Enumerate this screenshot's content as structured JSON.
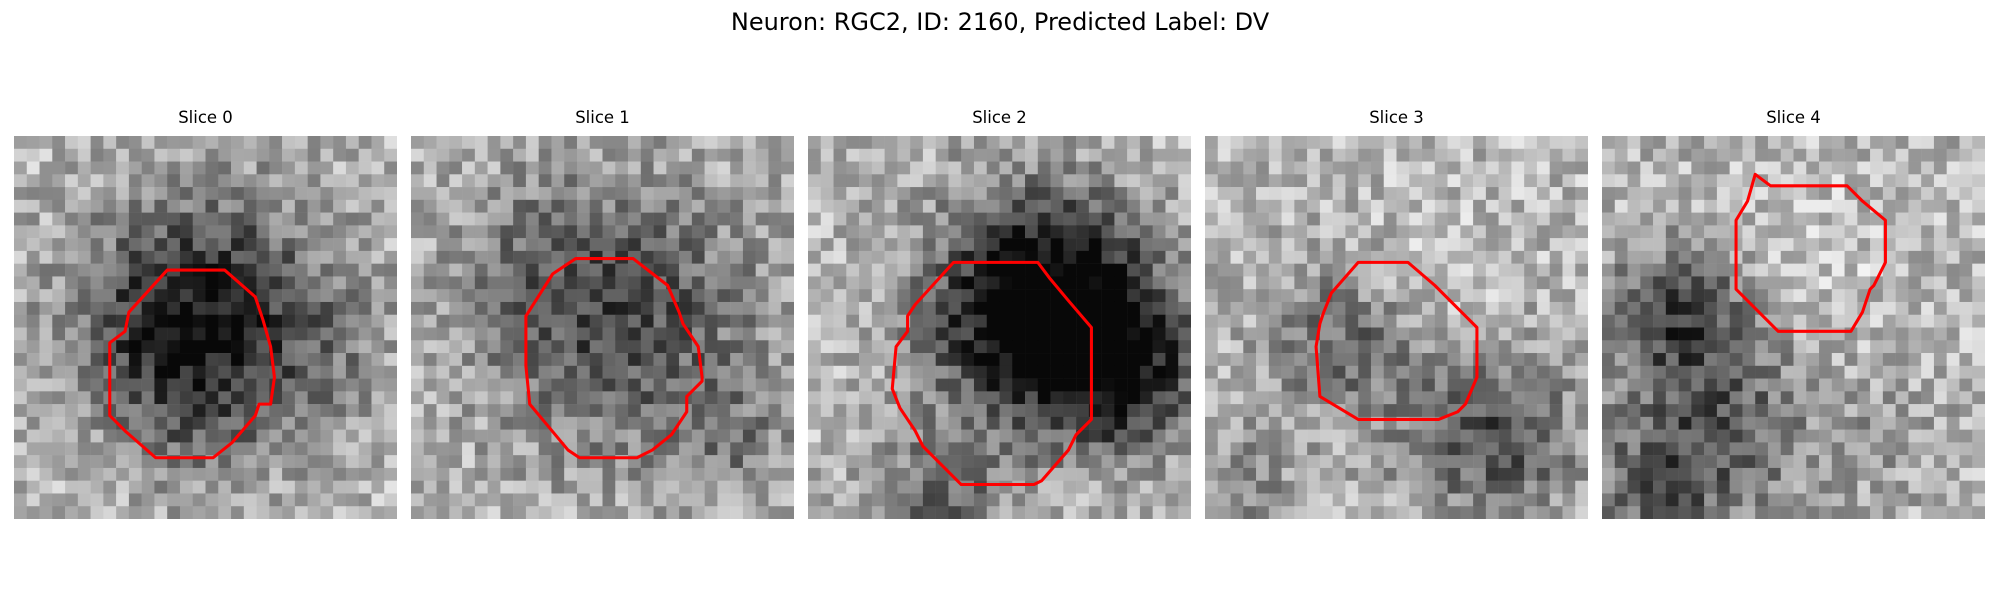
{
  "figure": {
    "title": "Neuron: RGC2, ID: 2160, Predicted Label: DV",
    "outline_color": "#ff0000"
  },
  "panels": [
    {
      "title": "Slice 0",
      "seed": 11,
      "blobs": [
        [
          0.52,
          0.46,
          0.22,
          -1.6
        ],
        [
          0.35,
          0.55,
          0.18,
          -0.5
        ],
        [
          0.5,
          0.75,
          0.12,
          -0.35
        ],
        [
          0.82,
          0.6,
          0.12,
          -0.3
        ]
      ],
      "contour": [
        [
          0.4,
          0.35
        ],
        [
          0.55,
          0.35
        ],
        [
          0.63,
          0.42
        ],
        [
          0.65,
          0.48
        ],
        [
          0.67,
          0.55
        ],
        [
          0.68,
          0.63
        ],
        [
          0.67,
          0.7
        ],
        [
          0.64,
          0.7
        ],
        [
          0.63,
          0.73
        ],
        [
          0.57,
          0.8
        ],
        [
          0.52,
          0.84
        ],
        [
          0.37,
          0.84
        ],
        [
          0.29,
          0.77
        ],
        [
          0.25,
          0.73
        ],
        [
          0.25,
          0.54
        ],
        [
          0.29,
          0.51
        ],
        [
          0.3,
          0.46
        ]
      ]
    },
    {
      "title": "Slice 1",
      "seed": 23,
      "blobs": [
        [
          0.55,
          0.48,
          0.25,
          -1.25
        ],
        [
          0.3,
          0.3,
          0.15,
          -0.3
        ],
        [
          0.85,
          0.8,
          0.1,
          -0.5
        ]
      ],
      "contour": [
        [
          0.37,
          0.36
        ],
        [
          0.43,
          0.32
        ],
        [
          0.58,
          0.32
        ],
        [
          0.67,
          0.39
        ],
        [
          0.7,
          0.46
        ],
        [
          0.71,
          0.49
        ],
        [
          0.75,
          0.55
        ],
        [
          0.76,
          0.63
        ],
        [
          0.76,
          0.64
        ],
        [
          0.72,
          0.68
        ],
        [
          0.72,
          0.72
        ],
        [
          0.68,
          0.78
        ],
        [
          0.63,
          0.82
        ],
        [
          0.61,
          0.83
        ],
        [
          0.59,
          0.84
        ],
        [
          0.44,
          0.84
        ],
        [
          0.41,
          0.82
        ],
        [
          0.36,
          0.76
        ],
        [
          0.31,
          0.7
        ],
        [
          0.3,
          0.6
        ],
        [
          0.3,
          0.55
        ],
        [
          0.3,
          0.47
        ]
      ]
    },
    {
      "title": "Slice 2",
      "seed": 37,
      "blobs": [
        [
          0.6,
          0.42,
          0.2,
          -1.9
        ],
        [
          0.73,
          0.55,
          0.18,
          -1.2
        ],
        [
          0.45,
          0.55,
          0.15,
          -0.2
        ],
        [
          0.35,
          0.95,
          0.12,
          -0.9
        ],
        [
          0.85,
          0.65,
          0.12,
          -0.9
        ]
      ],
      "contour": [
        [
          0.38,
          0.33
        ],
        [
          0.47,
          0.33
        ],
        [
          0.6,
          0.33
        ],
        [
          0.63,
          0.37
        ],
        [
          0.68,
          0.43
        ],
        [
          0.74,
          0.5
        ],
        [
          0.74,
          0.74
        ],
        [
          0.7,
          0.78
        ],
        [
          0.68,
          0.82
        ],
        [
          0.61,
          0.9
        ],
        [
          0.59,
          0.91
        ],
        [
          0.4,
          0.91
        ],
        [
          0.3,
          0.81
        ],
        [
          0.28,
          0.77
        ],
        [
          0.24,
          0.71
        ],
        [
          0.22,
          0.66
        ],
        [
          0.23,
          0.55
        ],
        [
          0.26,
          0.51
        ],
        [
          0.26,
          0.47
        ],
        [
          0.28,
          0.44
        ],
        [
          0.28,
          0.44
        ]
      ]
    },
    {
      "title": "Slice 3",
      "seed": 51,
      "blobs": [
        [
          0.38,
          0.54,
          0.14,
          -1.0
        ],
        [
          0.75,
          0.78,
          0.16,
          -1.2
        ],
        [
          0.55,
          0.45,
          0.15,
          0.3
        ],
        [
          0.1,
          0.9,
          0.1,
          -0.6
        ]
      ],
      "contour": [
        [
          0.33,
          0.41
        ],
        [
          0.4,
          0.33
        ],
        [
          0.53,
          0.33
        ],
        [
          0.6,
          0.39
        ],
        [
          0.67,
          0.46
        ],
        [
          0.71,
          0.5
        ],
        [
          0.71,
          0.63
        ],
        [
          0.68,
          0.7
        ],
        [
          0.66,
          0.72
        ],
        [
          0.61,
          0.74
        ],
        [
          0.61,
          0.74
        ],
        [
          0.59,
          0.74
        ],
        [
          0.57,
          0.74
        ],
        [
          0.54,
          0.74
        ],
        [
          0.4,
          0.74
        ],
        [
          0.35,
          0.71
        ],
        [
          0.3,
          0.68
        ],
        [
          0.29,
          0.55
        ],
        [
          0.3,
          0.49
        ],
        [
          0.31,
          0.46
        ]
      ]
    },
    {
      "title": "Slice 4",
      "seed": 67,
      "blobs": [
        [
          0.2,
          0.47,
          0.13,
          -1.3
        ],
        [
          0.35,
          0.75,
          0.16,
          -0.8
        ],
        [
          0.55,
          0.35,
          0.15,
          0.2
        ],
        [
          0.15,
          0.9,
          0.15,
          -0.9
        ],
        [
          0.75,
          0.8,
          0.12,
          -0.3
        ]
      ],
      "contour": [
        [
          0.4,
          0.1
        ],
        [
          0.44,
          0.13
        ],
        [
          0.46,
          0.13
        ],
        [
          0.64,
          0.13
        ],
        [
          0.68,
          0.17
        ],
        [
          0.74,
          0.22
        ],
        [
          0.74,
          0.33
        ],
        [
          0.71,
          0.39
        ],
        [
          0.7,
          0.4
        ],
        [
          0.68,
          0.46
        ],
        [
          0.65,
          0.51
        ],
        [
          0.61,
          0.51
        ],
        [
          0.56,
          0.51
        ],
        [
          0.46,
          0.51
        ],
        [
          0.41,
          0.46
        ],
        [
          0.35,
          0.4
        ],
        [
          0.35,
          0.22
        ],
        [
          0.38,
          0.17
        ]
      ]
    }
  ]
}
